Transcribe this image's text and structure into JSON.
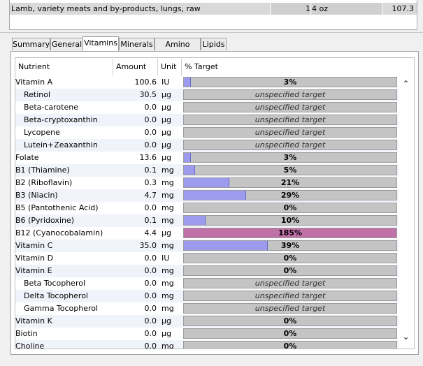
{
  "food_list": {
    "row": {
      "name": "Lamb, variety meats and by-products, lungs, raw",
      "qty": "1",
      "unit": "4 oz",
      "kcal": "107.3"
    }
  },
  "tabs": [
    {
      "label": "Summary",
      "active": false
    },
    {
      "label": "General",
      "active": false
    },
    {
      "label": "Vitamins",
      "active": true
    },
    {
      "label": "Minerals",
      "active": false
    },
    {
      "label": "Amino Acids",
      "active": false
    },
    {
      "label": "Lipids",
      "active": false
    }
  ],
  "columns": {
    "nutrient": "Nutrient",
    "amount": "Amount",
    "unit": "Unit",
    "target": "% Target"
  },
  "rows": [
    {
      "name": "Vitamin A",
      "amount": "100.6",
      "unit": "IU",
      "target": "3%",
      "pct": 3,
      "sub": false
    },
    {
      "name": "Retinol",
      "amount": "30.5",
      "unit": "µg",
      "target": "unspecified target",
      "pct": null,
      "sub": true
    },
    {
      "name": "Beta-carotene",
      "amount": "0.0",
      "unit": "µg",
      "target": "unspecified target",
      "pct": null,
      "sub": true
    },
    {
      "name": "Beta-cryptoxanthin",
      "amount": "0.0",
      "unit": "µg",
      "target": "unspecified target",
      "pct": null,
      "sub": true
    },
    {
      "name": "Lycopene",
      "amount": "0.0",
      "unit": "µg",
      "target": "unspecified target",
      "pct": null,
      "sub": true
    },
    {
      "name": "Lutein+Zeaxanthin",
      "amount": "0.0",
      "unit": "µg",
      "target": "unspecified target",
      "pct": null,
      "sub": true
    },
    {
      "name": "Folate",
      "amount": "13.6",
      "unit": "µg",
      "target": "3%",
      "pct": 3,
      "sub": false
    },
    {
      "name": "B1 (Thiamine)",
      "amount": "0.1",
      "unit": "mg",
      "target": "5%",
      "pct": 5,
      "sub": false
    },
    {
      "name": "B2 (Riboflavin)",
      "amount": "0.3",
      "unit": "mg",
      "target": "21%",
      "pct": 21,
      "sub": false
    },
    {
      "name": "B3 (Niacin)",
      "amount": "4.7",
      "unit": "mg",
      "target": "29%",
      "pct": 29,
      "sub": false
    },
    {
      "name": "B5 (Pantothenic Acid)",
      "amount": "0.0",
      "unit": "mg",
      "target": "0%",
      "pct": 0,
      "sub": false
    },
    {
      "name": "B6 (Pyridoxine)",
      "amount": "0.1",
      "unit": "mg",
      "target": "10%",
      "pct": 10,
      "sub": false
    },
    {
      "name": "B12 (Cyanocobalamin)",
      "amount": "4.4",
      "unit": "µg",
      "target": "185%",
      "pct": 185,
      "sub": false
    },
    {
      "name": "Vitamin C",
      "amount": "35.0",
      "unit": "mg",
      "target": "39%",
      "pct": 39,
      "sub": false
    },
    {
      "name": "Vitamin D",
      "amount": "0.0",
      "unit": "IU",
      "target": "0%",
      "pct": 0,
      "sub": false
    },
    {
      "name": "Vitamin E",
      "amount": "0.0",
      "unit": "mg",
      "target": "0%",
      "pct": 0,
      "sub": false
    },
    {
      "name": "Beta Tocopherol",
      "amount": "0.0",
      "unit": "mg",
      "target": "unspecified target",
      "pct": null,
      "sub": true
    },
    {
      "name": "Delta Tocopherol",
      "amount": "0.0",
      "unit": "mg",
      "target": "unspecified target",
      "pct": null,
      "sub": true
    },
    {
      "name": "Gamma Tocopherol",
      "amount": "0.0",
      "unit": "mg",
      "target": "unspecified target",
      "pct": null,
      "sub": true
    },
    {
      "name": "Vitamin K",
      "amount": "0.0",
      "unit": "µg",
      "target": "0%",
      "pct": 0,
      "sub": false
    },
    {
      "name": "Biotin",
      "amount": "0.0",
      "unit": "µg",
      "target": "0%",
      "pct": 0,
      "sub": false
    },
    {
      "name": "Choline",
      "amount": "0.0",
      "unit": "mg",
      "target": "0%",
      "pct": 0,
      "sub": false
    }
  ],
  "colors": {
    "under_target": "#9d9bee",
    "over_target": "#c071a8",
    "bar_background": "#c4c4c4"
  },
  "scroll": {
    "up_icon": "chevron-up-icon",
    "down_icon": "chevron-down-icon"
  }
}
